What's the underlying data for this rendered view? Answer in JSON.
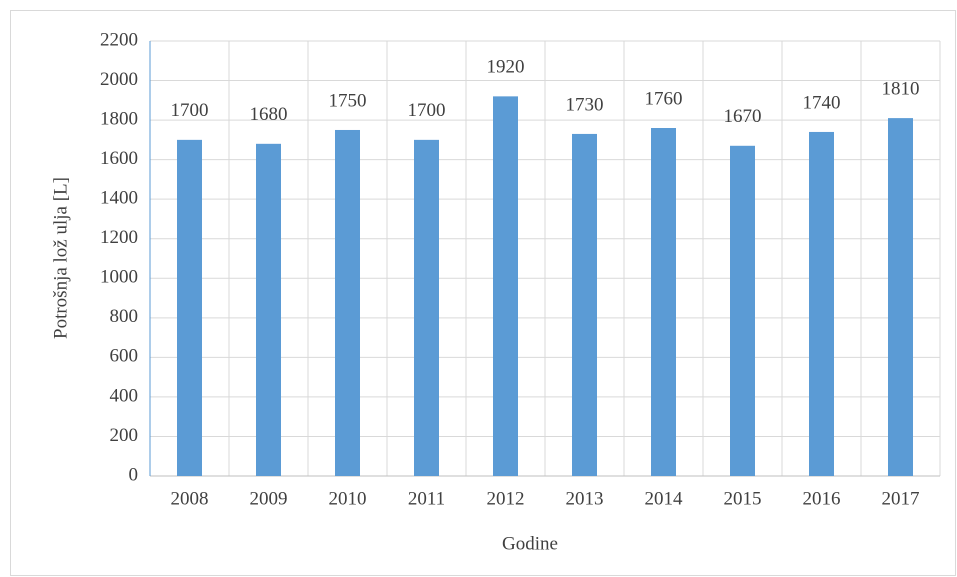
{
  "chart_data": {
    "type": "bar",
    "x_label": "Godine",
    "y_label": "Potrošnja lož ulja [L]",
    "categories": [
      "2008",
      "2009",
      "2010",
      "2011",
      "2012",
      "2013",
      "2014",
      "2015",
      "2016",
      "2017"
    ],
    "values": [
      1700,
      1680,
      1750,
      1700,
      1920,
      1730,
      1760,
      1670,
      1740,
      1810
    ],
    "color": "#5b9bd5",
    "ylim": [
      0,
      2200
    ],
    "yticks": [
      0,
      200,
      400,
      600,
      800,
      1000,
      1200,
      1400,
      1600,
      1800,
      2000,
      2200
    ],
    "grid": true
  }
}
